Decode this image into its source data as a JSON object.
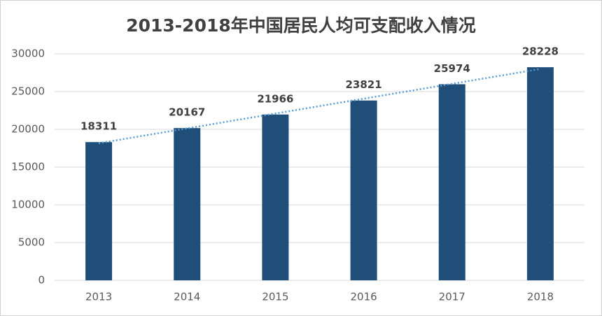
{
  "chart_data": {
    "type": "bar",
    "title": "2013-2018年中国居民人均可支配收入情况",
    "categories": [
      "2013",
      "2014",
      "2015",
      "2016",
      "2017",
      "2018"
    ],
    "values": [
      18311,
      20167,
      21966,
      23821,
      25974,
      28228
    ],
    "color": "#1f4e79",
    "ylim": [
      0,
      30000
    ],
    "yticks": [
      0,
      5000,
      10000,
      15000,
      20000,
      25000,
      30000
    ],
    "grid": true,
    "trendline": "linear",
    "trendline_color": "#5b9bd5"
  }
}
